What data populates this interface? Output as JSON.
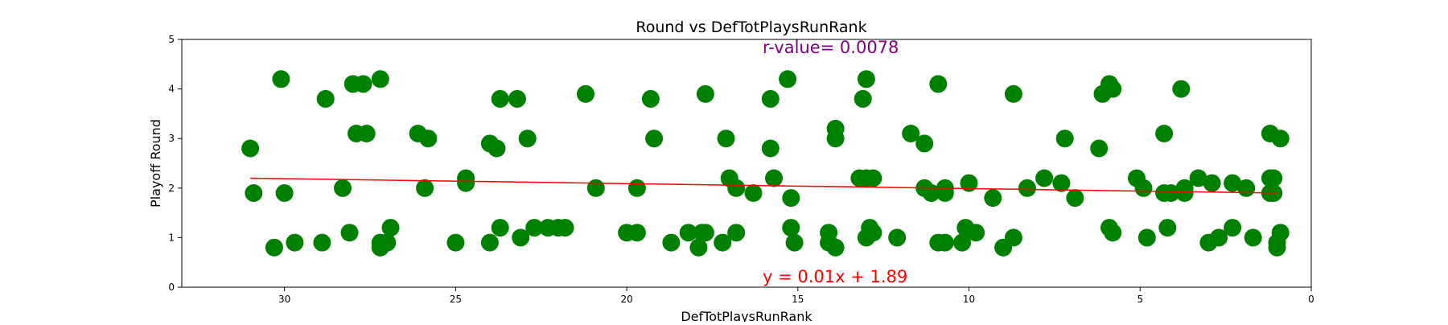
{
  "chart_data": {
    "type": "scatter",
    "title": "Round vs DefTotPlaysRunRank",
    "xlabel": "DefTotPlaysRunRank",
    "ylabel": "Playoff Round",
    "xlim": [
      33,
      0
    ],
    "ylim": [
      0,
      5
    ],
    "x_ticks": [
      30,
      25,
      20,
      15,
      10,
      5,
      0
    ],
    "y_ticks": [
      0,
      1,
      2,
      3,
      4,
      5
    ],
    "grid": false,
    "point_color": "#008000",
    "line_color": "#ff0000",
    "regression": {
      "slope": 0.01,
      "intercept": 1.89,
      "x_range": [
        1,
        31
      ]
    },
    "annotations": {
      "r_value": {
        "text": "r-value= 0.0078",
        "color": "#800080"
      },
      "equation": {
        "text": "y = 0.01x + 1.89",
        "color": "#ff0000"
      }
    },
    "points": [
      [
        31,
        2.8
      ],
      [
        30.9,
        1.9
      ],
      [
        30.3,
        0.8
      ],
      [
        30.1,
        4.2
      ],
      [
        30,
        1.9
      ],
      [
        29.7,
        0.9
      ],
      [
        28.9,
        0.9
      ],
      [
        28.8,
        3.8
      ],
      [
        28.3,
        2.0
      ],
      [
        28.1,
        1.1
      ],
      [
        28,
        4.1
      ],
      [
        27.9,
        3.1
      ],
      [
        27.7,
        4.1
      ],
      [
        27.6,
        3.1
      ],
      [
        27.2,
        0.9
      ],
      [
        27.2,
        0.8
      ],
      [
        27.2,
        4.2
      ],
      [
        27,
        0.9
      ],
      [
        26.9,
        1.2
      ],
      [
        26.1,
        3.1
      ],
      [
        25.9,
        2.0
      ],
      [
        25.8,
        3.0
      ],
      [
        25,
        0.9
      ],
      [
        24.7,
        2.2
      ],
      [
        24.7,
        2.1
      ],
      [
        24,
        0.9
      ],
      [
        24,
        2.9
      ],
      [
        23.8,
        2.8
      ],
      [
        23.7,
        1.2
      ],
      [
        23.7,
        3.8
      ],
      [
        23.2,
        3.8
      ],
      [
        23.1,
        1.0
      ],
      [
        22.9,
        3.0
      ],
      [
        22.7,
        1.2
      ],
      [
        22.3,
        1.2
      ],
      [
        22,
        1.2
      ],
      [
        21.8,
        1.2
      ],
      [
        21.2,
        3.9
      ],
      [
        20.9,
        2.0
      ],
      [
        20,
        1.1
      ],
      [
        19.7,
        2.0
      ],
      [
        19.7,
        1.1
      ],
      [
        19.3,
        3.8
      ],
      [
        19.2,
        3.0
      ],
      [
        18.7,
        0.9
      ],
      [
        18.2,
        1.1
      ],
      [
        17.9,
        0.8
      ],
      [
        17.8,
        1.1
      ],
      [
        17.7,
        1.1
      ],
      [
        17.7,
        3.9
      ],
      [
        17.2,
        0.9
      ],
      [
        17.1,
        3.0
      ],
      [
        17,
        2.2
      ],
      [
        16.8,
        2.0
      ],
      [
        16.8,
        1.1
      ],
      [
        16.3,
        1.9
      ],
      [
        15.8,
        2.8
      ],
      [
        15.8,
        3.8
      ],
      [
        15.7,
        2.2
      ],
      [
        15.3,
        4.2
      ],
      [
        15.2,
        1.2
      ],
      [
        15.2,
        1.8
      ],
      [
        15.1,
        0.9
      ],
      [
        14.1,
        1.1
      ],
      [
        14.1,
        0.9
      ],
      [
        13.9,
        3.2
      ],
      [
        13.9,
        3.0
      ],
      [
        13.9,
        0.8
      ],
      [
        13.2,
        2.2
      ],
      [
        13.1,
        3.8
      ],
      [
        13,
        4.2
      ],
      [
        13,
        2.2
      ],
      [
        13,
        1.0
      ],
      [
        12.9,
        1.2
      ],
      [
        12.8,
        2.2
      ],
      [
        12.8,
        1.1
      ],
      [
        12.1,
        1.0
      ],
      [
        11.7,
        3.1
      ],
      [
        11.3,
        2.9
      ],
      [
        11.3,
        2.0
      ],
      [
        11.1,
        1.9
      ],
      [
        10.9,
        4.1
      ],
      [
        10.9,
        0.9
      ],
      [
        10.7,
        1.9
      ],
      [
        10.7,
        2.0
      ],
      [
        10.7,
        0.9
      ],
      [
        10.2,
        0.9
      ],
      [
        10.1,
        1.2
      ],
      [
        10,
        2.1
      ],
      [
        9.8,
        1.1
      ],
      [
        9.3,
        1.8
      ],
      [
        9.0,
        0.8
      ],
      [
        8.7,
        3.9
      ],
      [
        8.7,
        1.0
      ],
      [
        8.3,
        2.0
      ],
      [
        7.8,
        2.2
      ],
      [
        7.3,
        2.1
      ],
      [
        7.2,
        3.0
      ],
      [
        6.9,
        1.8
      ],
      [
        6.2,
        2.8
      ],
      [
        6.1,
        3.9
      ],
      [
        5.9,
        4.1
      ],
      [
        5.9,
        1.2
      ],
      [
        5.8,
        1.1
      ],
      [
        5.8,
        4.0
      ],
      [
        5.1,
        2.2
      ],
      [
        4.9,
        2.0
      ],
      [
        4.8,
        1.0
      ],
      [
        4.3,
        1.9
      ],
      [
        4.3,
        3.1
      ],
      [
        4.2,
        1.2
      ],
      [
        4.1,
        1.9
      ],
      [
        3.8,
        4.0
      ],
      [
        3.7,
        2.0
      ],
      [
        3.7,
        1.9
      ],
      [
        3.3,
        2.2
      ],
      [
        3,
        0.9
      ],
      [
        2.9,
        2.1
      ],
      [
        2.7,
        1.0
      ],
      [
        2.3,
        1.2
      ],
      [
        2.3,
        2.1
      ],
      [
        1.9,
        2.0
      ],
      [
        1.7,
        1.0
      ],
      [
        1.2,
        1.9
      ],
      [
        1.2,
        3.1
      ],
      [
        1.2,
        2.2
      ],
      [
        1.1,
        1.9
      ],
      [
        1.1,
        2.2
      ],
      [
        1.0,
        0.9
      ],
      [
        1.0,
        0.8
      ],
      [
        0.9,
        3.0
      ],
      [
        0.9,
        1.1
      ]
    ]
  }
}
